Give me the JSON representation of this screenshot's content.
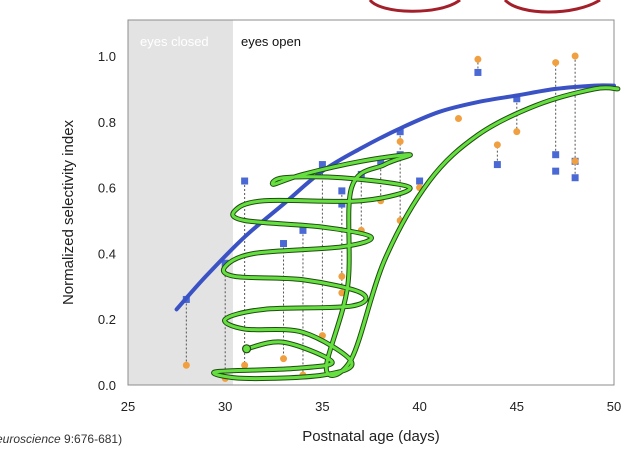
{
  "chart_data": {
    "type": "scatter",
    "xlabel": "Postnatal age (days)",
    "ylabel": "Normalized selectivity index",
    "xlim": [
      25,
      50
    ],
    "ylim": [
      0,
      1.0
    ],
    "x_ticks": [
      "25",
      "30",
      "35",
      "40",
      "45",
      "50"
    ],
    "y_ticks": [
      "0.0",
      "0.2",
      "0.4",
      "0.6",
      "0.8",
      "1.0"
    ],
    "grid": false,
    "regions": [
      {
        "label": "eyes closed",
        "x_range": [
          25,
          30.4
        ],
        "color": "#e3e3e3",
        "text_color": "#ffffff"
      },
      {
        "label": "eyes open",
        "x_range": [
          30.4,
          50
        ],
        "color": "#ffffff",
        "text_color": "#111111"
      }
    ],
    "series": [
      {
        "marker": "square",
        "color": "#4a69d4",
        "x": [
          28,
          30,
          31,
          33,
          34,
          35,
          36,
          36,
          37,
          38,
          39,
          39,
          40,
          43,
          44,
          45,
          47,
          47,
          48,
          48
        ],
        "y": [
          0.26,
          0.37,
          0.62,
          0.43,
          0.47,
          0.67,
          0.59,
          0.55,
          0.64,
          0.68,
          0.7,
          0.77,
          0.62,
          0.95,
          0.67,
          0.87,
          0.7,
          0.65,
          0.68,
          0.63
        ]
      },
      {
        "marker": "circle",
        "color": "#f0a040",
        "x": [
          28,
          30,
          31,
          33,
          34,
          35,
          36,
          36,
          37,
          38,
          39,
          39,
          40,
          42,
          43,
          44,
          45,
          47,
          48,
          48
        ],
        "y": [
          0.06,
          0.02,
          0.06,
          0.08,
          0.03,
          0.15,
          0.28,
          0.33,
          0.47,
          0.56,
          0.5,
          0.74,
          0.6,
          0.81,
          0.99,
          0.73,
          0.77,
          0.98,
          0.68,
          1.0
        ]
      }
    ],
    "pair_lines": [
      [
        28,
        0.26,
        0.06
      ],
      [
        30,
        0.37,
        0.02
      ],
      [
        31,
        0.62,
        0.06
      ],
      [
        33,
        0.43,
        0.08
      ],
      [
        34,
        0.47,
        0.03
      ],
      [
        35,
        0.67,
        0.15
      ],
      [
        36,
        0.59,
        0.28
      ],
      [
        37,
        0.64,
        0.47
      ],
      [
        38,
        0.68,
        0.56
      ],
      [
        39,
        0.77,
        0.5
      ],
      [
        43,
        0.95,
        0.99
      ],
      [
        44,
        0.67,
        0.73
      ],
      [
        45,
        0.87,
        0.77
      ],
      [
        47,
        0.7,
        0.98
      ],
      [
        48,
        0.63,
        1.0
      ]
    ],
    "trend_line": {
      "color": "#3a52c4",
      "x": [
        27.5,
        29,
        31,
        33,
        35,
        37,
        39,
        41,
        43,
        45,
        47,
        49,
        50
      ],
      "y": [
        0.23,
        0.33,
        0.45,
        0.55,
        0.65,
        0.72,
        0.78,
        0.83,
        0.86,
        0.88,
        0.9,
        0.91,
        0.91
      ]
    },
    "annotation_curve": {
      "color": "#66e040",
      "points": [
        [
          31.1,
          0.11
        ],
        [
          33,
          0.13
        ],
        [
          35.5,
          0.07
        ],
        [
          33.5,
          0.05
        ],
        [
          29.5,
          0.04
        ],
        [
          31,
          0.02
        ],
        [
          35,
          0.03
        ],
        [
          36.5,
          0.07
        ],
        [
          34,
          0.16
        ],
        [
          31,
          0.17
        ],
        [
          30,
          0.2
        ],
        [
          32,
          0.23
        ],
        [
          36.5,
          0.24
        ],
        [
          37,
          0.28
        ],
        [
          34,
          0.32
        ],
        [
          30.5,
          0.33
        ],
        [
          30,
          0.36
        ],
        [
          31.5,
          0.4
        ],
        [
          36,
          0.42
        ],
        [
          37.5,
          0.45
        ],
        [
          35,
          0.48
        ],
        [
          31,
          0.5
        ],
        [
          30.5,
          0.53
        ],
        [
          32,
          0.56
        ],
        [
          37,
          0.56
        ],
        [
          39.5,
          0.6
        ],
        [
          36,
          0.63
        ],
        [
          33,
          0.63
        ],
        [
          32.5,
          0.61
        ],
        [
          34,
          0.64
        ],
        [
          37,
          0.68
        ],
        [
          39.5,
          0.7
        ],
        [
          38.2,
          0.67
        ],
        [
          36.5,
          0.6
        ],
        [
          36.3,
          0.3
        ],
        [
          35.2,
          0.05
        ],
        [
          36.5,
          0.08
        ],
        [
          38.2,
          0.38
        ],
        [
          40.5,
          0.62
        ],
        [
          43,
          0.76
        ],
        [
          46,
          0.85
        ],
        [
          49,
          0.9
        ],
        [
          50.2,
          0.9
        ]
      ]
    },
    "citation": {
      "italic": "euroscience",
      "rest": " 9:676-681)"
    }
  }
}
